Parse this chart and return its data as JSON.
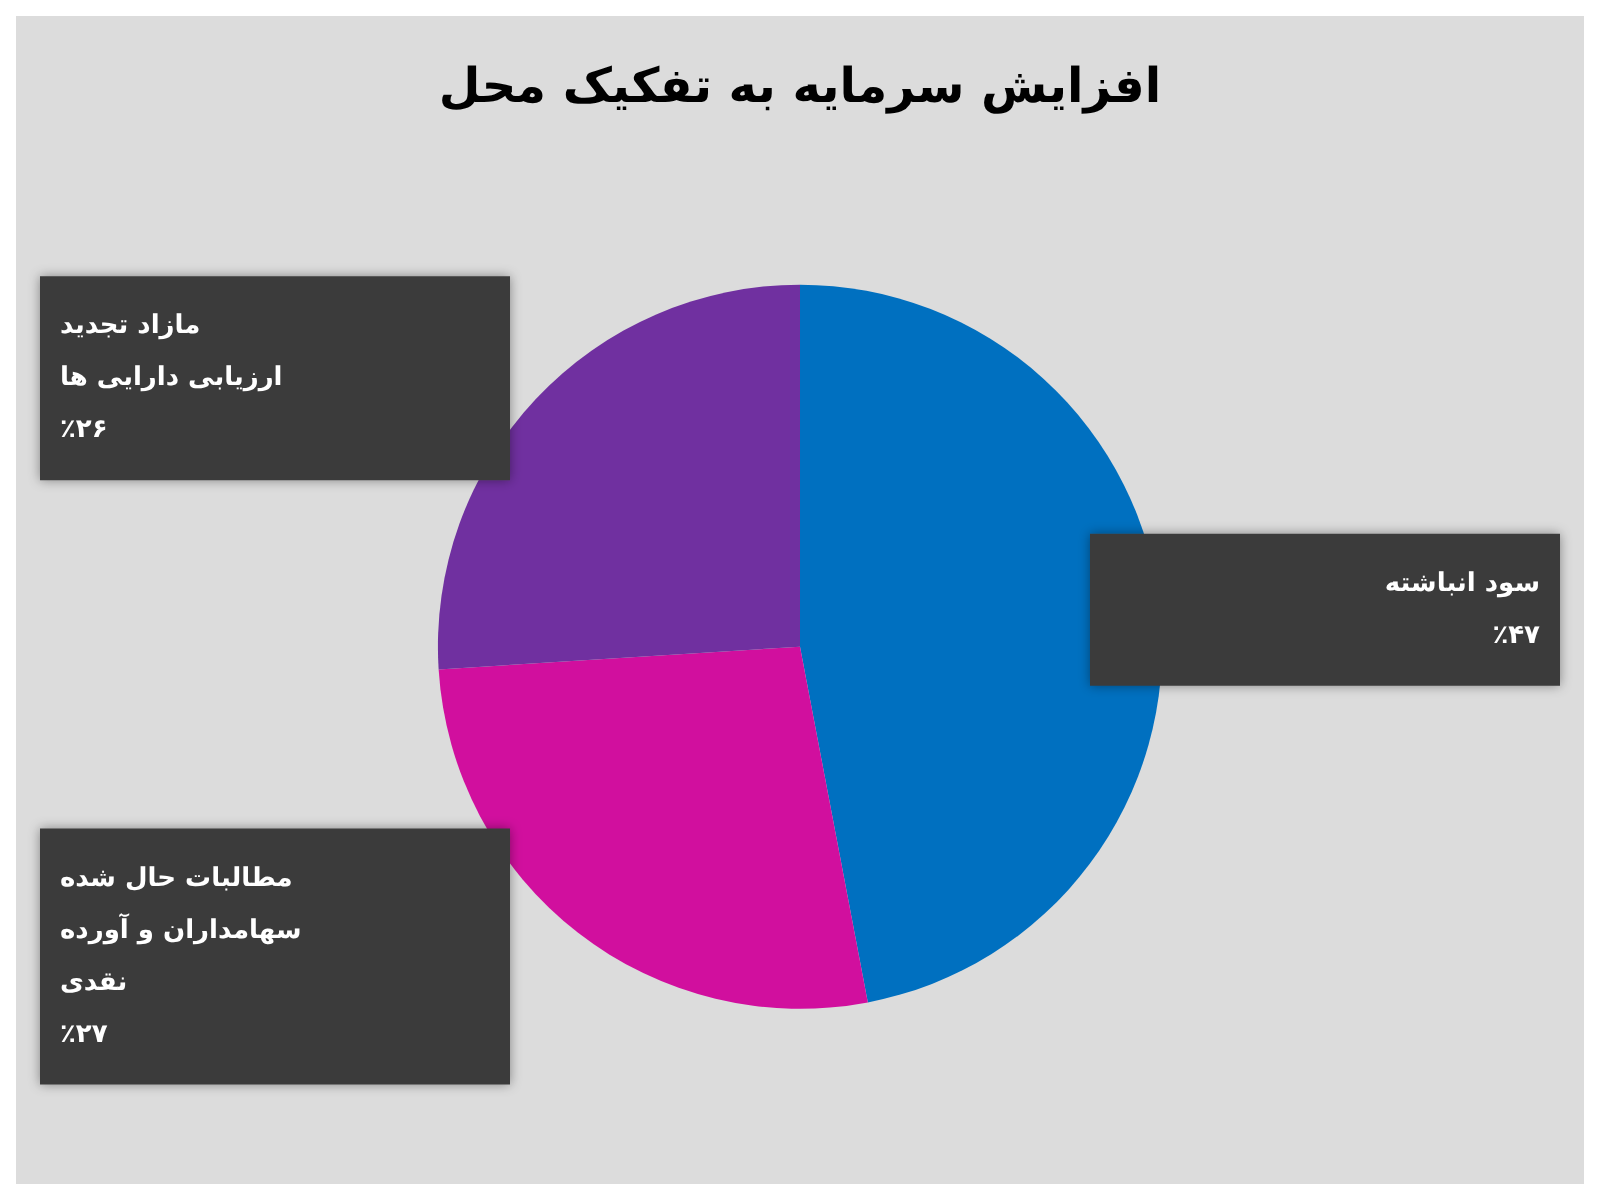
{
  "chart_data": {
    "type": "pie",
    "title": "افزایش سرمایه به تفکیک محل",
    "categories": [
      "سود انباشته",
      "مطالبات حال شده سهامداران و آورده نقدی",
      "مازاد تجدید ارزیابی دارایی ها"
    ],
    "values": [
      47,
      27,
      26
    ],
    "value_labels": [
      "٪۴۷",
      "٪۲۷",
      "٪۲۶"
    ],
    "colors": [
      "#0070c0",
      "#d10f9e",
      "#7030a0"
    ],
    "legend": false
  }
}
